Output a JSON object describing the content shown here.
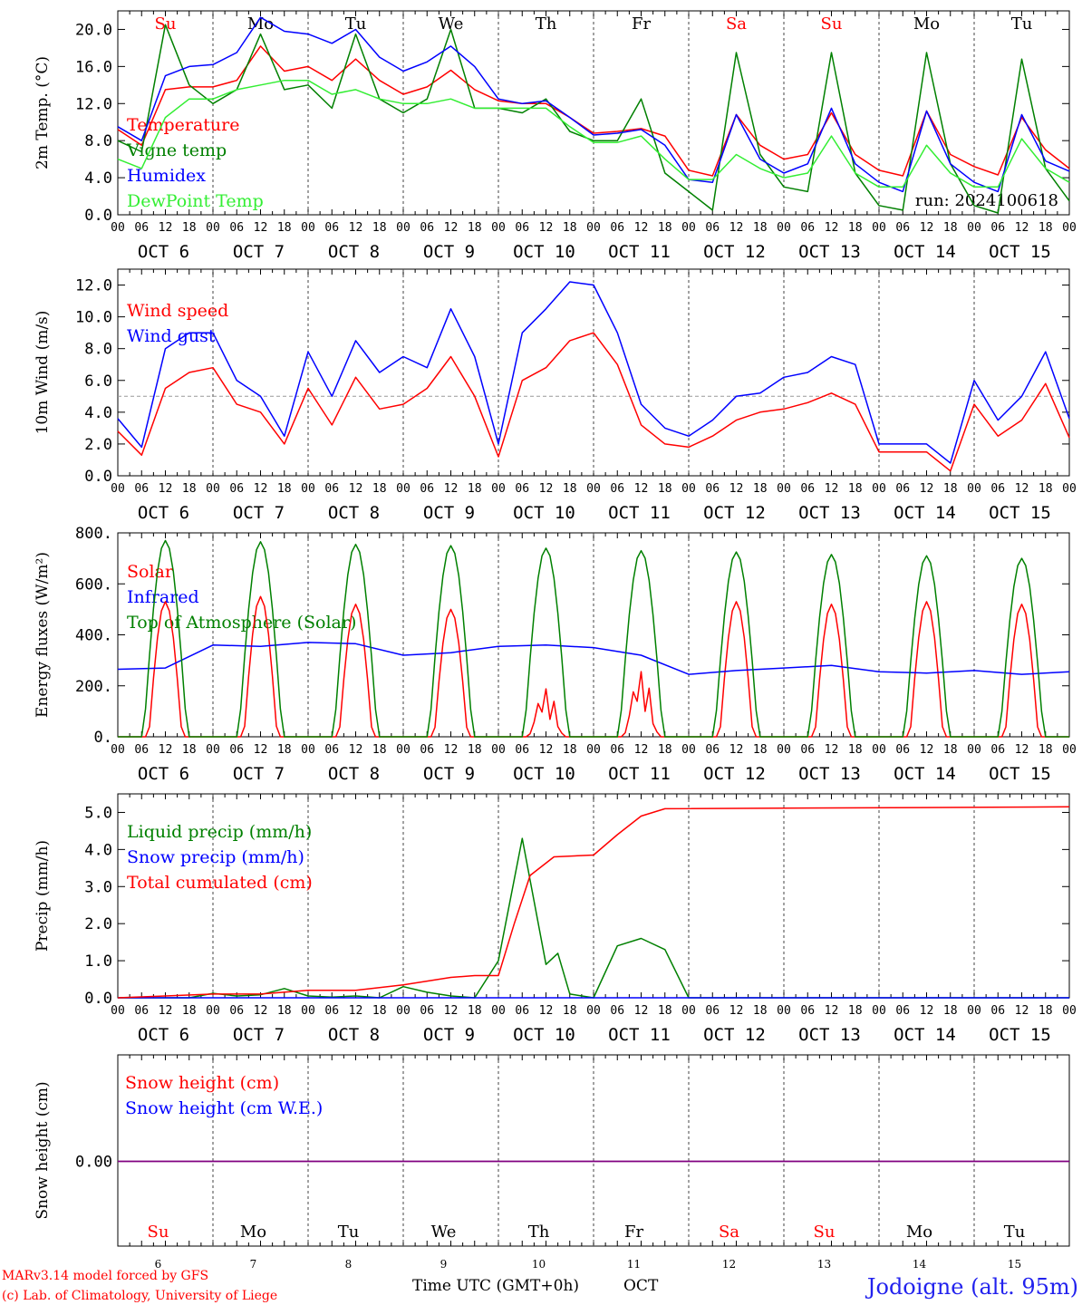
{
  "meta": {
    "run_label": "run: 2024100618",
    "model_label": "MARv3.14 model forced by GFS",
    "credit_label": "(c) Lab. of Climatology, University of Liege",
    "station_label": "Jodoigne (alt. 95m)",
    "time_axis_label": "Time UTC (GMT+0h)",
    "month_label": "OCT"
  },
  "axis": {
    "hour_ticks": [
      "00",
      "06",
      "12",
      "18"
    ],
    "day_labels": [
      "OCT  6",
      "OCT  7",
      "OCT  8",
      "OCT  9",
      "OCT 10",
      "OCT 11",
      "OCT 12",
      "OCT 13",
      "OCT 14",
      "OCT 15"
    ],
    "weekday_labels": [
      "Su",
      "Mo",
      "Tu",
      "We",
      "Th",
      "Fr",
      "Sa",
      "Su",
      "Mo",
      "Tu"
    ],
    "weekend_flags": [
      true,
      false,
      false,
      false,
      false,
      false,
      true,
      true,
      false,
      false
    ],
    "day_numbers": [
      "6",
      "7",
      "8",
      "9",
      "10",
      "11",
      "12",
      "13",
      "14",
      "15"
    ],
    "final_tick": "00"
  },
  "colors": {
    "red": "#ff0000",
    "blue": "#0000ff",
    "dark_green": "#008000",
    "light_green": "#33ee33",
    "purple": "#800080",
    "label_black": "#000000"
  },
  "chart_data": [
    {
      "type": "line",
      "ylabel": "2m Temp. (°C)",
      "ylim": [
        0,
        22
      ],
      "yticks": [
        "0.0",
        "4.0",
        "8.0",
        "12.0",
        "16.0",
        "20.0"
      ],
      "x": [
        0,
        6,
        12,
        18,
        24,
        30,
        36,
        42,
        48,
        54,
        60,
        66,
        72,
        78,
        84,
        90,
        96,
        102,
        108,
        114,
        120,
        126,
        132,
        138,
        144,
        150,
        156,
        162,
        168,
        174,
        180,
        186,
        192,
        198,
        204,
        210,
        216,
        222,
        228,
        234,
        240
      ],
      "x_unit": "hours from Oct 6 00 UTC",
      "series": [
        {
          "name": "Temperature",
          "color": "#ff0000",
          "values": [
            9.2,
            7.5,
            13.5,
            13.8,
            13.8,
            14.5,
            18.2,
            15.5,
            16.0,
            14.5,
            16.8,
            14.5,
            13.0,
            13.8,
            15.6,
            13.5,
            12.3,
            12.0,
            12.0,
            10.5,
            8.8,
            9.0,
            9.3,
            8.5,
            4.8,
            4.2,
            10.8,
            7.5,
            6.0,
            6.5,
            11.0,
            6.5,
            4.8,
            4.2,
            11.2,
            6.5,
            5.2,
            4.3,
            10.5,
            7.0,
            5.0
          ]
        },
        {
          "name": "Vigne temp",
          "color": "#008000",
          "values": [
            8.0,
            6.8,
            20.5,
            14.0,
            12.0,
            13.5,
            19.5,
            13.5,
            14.0,
            11.5,
            19.5,
            12.5,
            11.0,
            12.5,
            20.0,
            11.5,
            11.5,
            11.0,
            12.5,
            9.0,
            8.0,
            8.0,
            12.5,
            4.5,
            2.5,
            0.5,
            17.5,
            6.5,
            3.0,
            2.5,
            17.5,
            4.5,
            1.0,
            0.5,
            17.5,
            5.5,
            1.0,
            0.2,
            16.8,
            5.0,
            1.5
          ]
        },
        {
          "name": "Humidex",
          "color": "#0000ff",
          "values": [
            9.5,
            8.0,
            15.0,
            16.0,
            16.2,
            17.5,
            21.3,
            19.8,
            19.5,
            18.5,
            20.0,
            17.0,
            15.5,
            16.5,
            18.2,
            16.0,
            12.5,
            12.0,
            12.3,
            10.5,
            8.6,
            8.8,
            9.2,
            7.5,
            3.8,
            3.5,
            10.8,
            6.0,
            4.5,
            5.5,
            11.5,
            5.5,
            3.5,
            2.5,
            11.2,
            5.5,
            3.5,
            2.5,
            10.8,
            5.8,
            4.7
          ]
        },
        {
          "name": "DewPoint Temp",
          "color": "#33ee33",
          "values": [
            6.0,
            5.0,
            10.5,
            12.5,
            12.5,
            13.5,
            14.0,
            14.5,
            14.5,
            13.0,
            13.5,
            12.5,
            12.0,
            12.0,
            12.5,
            11.5,
            11.5,
            11.5,
            11.5,
            9.5,
            7.8,
            7.8,
            8.5,
            6.0,
            3.8,
            3.8,
            6.5,
            5.0,
            4.0,
            4.5,
            8.5,
            4.5,
            3.0,
            3.0,
            7.5,
            4.5,
            3.0,
            3.0,
            8.2,
            5.0,
            3.5
          ]
        }
      ]
    },
    {
      "type": "line",
      "ylabel": "10m Wind (m/s)",
      "ylim": [
        0,
        13
      ],
      "yticks": [
        "0.0",
        "2.0",
        "4.0",
        "6.0",
        "8.0",
        "10.0",
        "12.0"
      ],
      "reference_line": 5,
      "x": [
        0,
        6,
        12,
        18,
        24,
        30,
        36,
        42,
        48,
        54,
        60,
        66,
        72,
        78,
        84,
        90,
        96,
        102,
        108,
        114,
        120,
        126,
        132,
        138,
        144,
        150,
        156,
        162,
        168,
        174,
        180,
        186,
        192,
        198,
        204,
        210,
        216,
        222,
        228,
        234,
        240
      ],
      "series": [
        {
          "name": "Wind speed",
          "color": "#ff0000",
          "values": [
            2.8,
            1.3,
            5.5,
            6.5,
            6.8,
            4.5,
            4.0,
            2.0,
            5.5,
            3.2,
            6.2,
            4.2,
            4.5,
            5.5,
            7.5,
            5.0,
            1.2,
            6.0,
            6.8,
            8.5,
            9.0,
            7.0,
            3.2,
            2.0,
            1.8,
            2.5,
            3.5,
            4.0,
            4.2,
            4.6,
            5.2,
            4.5,
            1.5,
            1.5,
            1.5,
            0.3,
            4.5,
            2.5,
            3.5,
            5.8,
            2.4
          ]
        },
        {
          "name": "Wind gust",
          "color": "#0000ff",
          "values": [
            3.6,
            1.8,
            8.0,
            9.0,
            9.0,
            6.0,
            5.0,
            2.5,
            7.8,
            5.0,
            8.5,
            6.5,
            7.5,
            6.8,
            10.5,
            7.5,
            2.0,
            9.0,
            10.5,
            12.2,
            12.0,
            9.0,
            4.5,
            3.0,
            2.5,
            3.5,
            5.0,
            5.2,
            6.2,
            6.5,
            7.5,
            7.0,
            2.0,
            2.0,
            2.0,
            0.8,
            6.0,
            3.5,
            5.0,
            7.8,
            3.6
          ]
        }
      ]
    },
    {
      "type": "line",
      "ylabel": "Energy fluxes (W/m²)",
      "ylim": [
        0,
        800
      ],
      "yticks": [
        "0.",
        "200.",
        "400.",
        "600.",
        "800."
      ],
      "daily_solar_peaks": {
        "Solar": [
          530,
          550,
          520,
          500,
          190,
          260,
          530,
          520,
          530,
          520
        ],
        "Top of Atmosphere (Solar)": [
          770,
          765,
          755,
          750,
          740,
          730,
          725,
          715,
          710,
          700
        ]
      },
      "series": [
        {
          "name": "Solar",
          "color": "#ff0000"
        },
        {
          "name": "Infrared",
          "color": "#0000ff",
          "x": [
            0,
            12,
            24,
            36,
            48,
            60,
            72,
            84,
            96,
            108,
            120,
            132,
            144,
            156,
            168,
            180,
            192,
            204,
            216,
            228,
            240
          ],
          "values": [
            265,
            270,
            360,
            355,
            370,
            365,
            320,
            330,
            355,
            360,
            350,
            320,
            245,
            260,
            270,
            280,
            255,
            250,
            260,
            245,
            255
          ]
        },
        {
          "name": "Top of Atmosphere (Solar)",
          "color": "#008000"
        }
      ]
    },
    {
      "type": "line",
      "ylabel": "Precip (mm/h)",
      "ylim": [
        0,
        5.5
      ],
      "yticks": [
        "0.0",
        "1.0",
        "2.0",
        "3.0",
        "4.0",
        "5.0"
      ],
      "series": [
        {
          "name": "Liquid precip (mm/h)",
          "color": "#008000",
          "x": [
            0,
            18,
            24,
            30,
            36,
            42,
            48,
            54,
            60,
            66,
            72,
            78,
            84,
            90,
            96,
            102,
            108,
            111,
            114,
            120,
            126,
            132,
            138,
            144,
            168,
            240
          ],
          "values": [
            0.0,
            0.0,
            0.12,
            0.05,
            0.08,
            0.25,
            0.05,
            0.02,
            0.05,
            0.0,
            0.3,
            0.15,
            0.05,
            0.0,
            1.0,
            4.3,
            0.9,
            1.2,
            0.1,
            0.0,
            1.4,
            1.6,
            1.3,
            0.0,
            0.0,
            0.0
          ]
        },
        {
          "name": "Snow precip (mm/h)",
          "color": "#0000ff",
          "x": [
            0,
            240
          ],
          "values": [
            0.0,
            0.0
          ]
        },
        {
          "name": "Total cumulated (cm)",
          "color": "#ff0000",
          "x": [
            0,
            12,
            24,
            36,
            48,
            60,
            72,
            78,
            84,
            90,
            96,
            100,
            104,
            110,
            120,
            126,
            132,
            138,
            240
          ],
          "values": [
            0.0,
            0.05,
            0.1,
            0.1,
            0.2,
            0.2,
            0.35,
            0.45,
            0.55,
            0.6,
            0.6,
            2.0,
            3.3,
            3.8,
            3.85,
            4.4,
            4.9,
            5.1,
            5.15
          ]
        }
      ]
    },
    {
      "type": "line",
      "ylabel": "Snow height (cm)",
      "yticks": [
        "0.00"
      ],
      "series": [
        {
          "name": "Snow height (cm)",
          "color": "#ff0000",
          "x": [
            0,
            240
          ],
          "values": [
            0,
            0
          ]
        },
        {
          "name": "Snow height (cm W.E.)",
          "color": "#0000ff",
          "x": [
            0,
            240
          ],
          "values": [
            0,
            0
          ]
        }
      ]
    }
  ]
}
